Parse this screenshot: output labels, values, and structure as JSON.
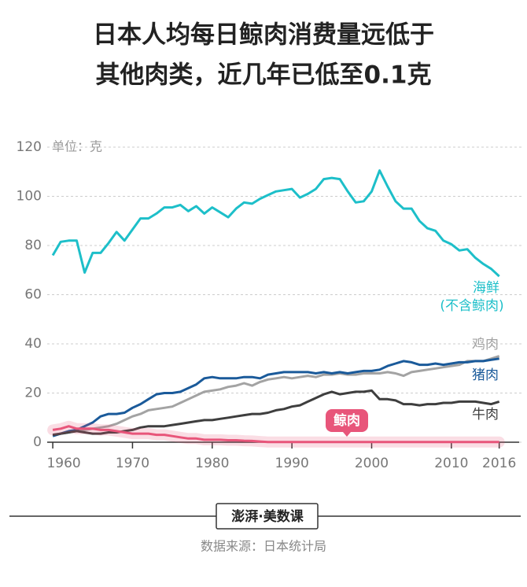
{
  "chart_data": {
    "type": "line",
    "title": [
      "日本人均每日鲸肉消费量远低于",
      "其他肉类，近几年已低至0.1克"
    ],
    "unit": "单位：克",
    "x": [
      1960,
      1961,
      1962,
      1963,
      1964,
      1965,
      1966,
      1967,
      1968,
      1969,
      1970,
      1971,
      1972,
      1973,
      1974,
      1975,
      1976,
      1977,
      1978,
      1979,
      1980,
      1981,
      1982,
      1983,
      1984,
      1985,
      1986,
      1987,
      1988,
      1989,
      1990,
      1991,
      1992,
      1993,
      1994,
      1995,
      1996,
      1997,
      1998,
      1999,
      2000,
      2001,
      2002,
      2003,
      2004,
      2005,
      2006,
      2007,
      2008,
      2009,
      2010,
      2011,
      2012,
      2013,
      2014,
      2015,
      2016
    ],
    "series": [
      {
        "name": "海鲜",
        "name_note": "(不含鲸肉)",
        "color": "#1dbfc9",
        "values": [
          76,
          81.5,
          82,
          82,
          69,
          77,
          77,
          81,
          85.5,
          82,
          86.5,
          91,
          91,
          93,
          95.5,
          95.5,
          96.5,
          94,
          96,
          93,
          95.5,
          93.5,
          91.5,
          95,
          97.5,
          97,
          99,
          100.5,
          102,
          102.5,
          103,
          99.5,
          101,
          103,
          107,
          107.5,
          107,
          102,
          97.5,
          98,
          102,
          110.5,
          104,
          98,
          95,
          95,
          90,
          87,
          86,
          82,
          80.5,
          78,
          78.5,
          75,
          72.5,
          70.5,
          67.5
        ]
      },
      {
        "name": "鸡肉",
        "color": "#a3a3a3",
        "values": [
          3,
          3.5,
          4,
          4.5,
          5,
          5.5,
          6,
          6.5,
          7.5,
          9,
          10.5,
          11.5,
          13,
          13.5,
          14,
          14.5,
          16,
          17.5,
          19,
          20.5,
          21,
          21.5,
          22.5,
          23,
          24,
          23,
          24.5,
          25.5,
          26,
          26.5,
          26,
          26.5,
          27,
          26.5,
          27.5,
          27.5,
          28,
          27.5,
          27.5,
          28,
          28,
          28,
          28.5,
          28,
          27,
          28.5,
          29,
          29.5,
          30,
          30.5,
          31,
          31.5,
          33,
          33,
          33,
          34,
          35
        ]
      },
      {
        "name": "猪肉",
        "color": "#1a5a9a",
        "values": [
          2.5,
          3.5,
          4.5,
          5,
          6.5,
          8,
          10.5,
          11.5,
          11.5,
          12,
          14,
          15.5,
          17.5,
          19.5,
          20,
          20,
          20.5,
          22,
          23.5,
          26,
          26.5,
          26,
          26,
          26,
          26.5,
          26.5,
          26,
          27.5,
          28,
          28.5,
          28.5,
          28.5,
          28.5,
          28,
          28.5,
          28,
          28.5,
          28,
          28.5,
          29,
          29,
          29.5,
          31,
          32,
          33,
          32.5,
          31.5,
          31.5,
          32,
          31.5,
          32,
          32.5,
          32.5,
          33,
          33,
          33.5,
          34
        ]
      },
      {
        "name": "牛肉",
        "color": "#3e3e3e",
        "values": [
          3,
          3.5,
          4,
          4.5,
          4,
          3.5,
          3.5,
          4,
          4,
          4.5,
          5,
          6,
          6.5,
          6.5,
          6.5,
          7,
          7.5,
          8,
          8.5,
          9,
          9,
          9.5,
          10,
          10.5,
          11,
          11.5,
          11.5,
          12,
          13,
          13.5,
          14.5,
          15,
          16.5,
          18,
          19.5,
          20.5,
          19.5,
          20,
          20.5,
          20.5,
          21,
          17.5,
          17.5,
          17,
          15.5,
          15.5,
          15,
          15.5,
          15.5,
          16,
          16,
          16.5,
          16.5,
          16.5,
          16,
          15.5,
          16.5
        ]
      },
      {
        "name": "鲸肉",
        "color": "#e8557a",
        "values": [
          5,
          5.5,
          6.5,
          5.5,
          5.5,
          5.5,
          5,
          5,
          4.5,
          4,
          3.5,
          3.5,
          3.5,
          3,
          3,
          2.5,
          2,
          1.5,
          1.5,
          1,
          1,
          1,
          0.8,
          0.8,
          0.6,
          0.5,
          0.3,
          0.1,
          0.1,
          0.1,
          0.1,
          0.1,
          0.1,
          0.1,
          0.1,
          0.1,
          0.1,
          0.1,
          0.1,
          0.1,
          0.1,
          0.1,
          0.1,
          0.1,
          0.1,
          0.1,
          0.1,
          0.1,
          0.1,
          0.1,
          0.1,
          0.1,
          0.1,
          0.1,
          0.1,
          0.1,
          0.1
        ]
      }
    ],
    "xlim": [
      1959.3,
      2018.5
    ],
    "xticks": [
      1960,
      1970,
      1980,
      1990,
      2000,
      2010,
      2016
    ],
    "ylim": [
      0,
      120
    ],
    "yticks": [
      0,
      20,
      40,
      60,
      80,
      100,
      120
    ],
    "grid": true
  },
  "footer": {
    "logo": "澎湃·美数课",
    "source": "数据来源：日本统计局"
  }
}
